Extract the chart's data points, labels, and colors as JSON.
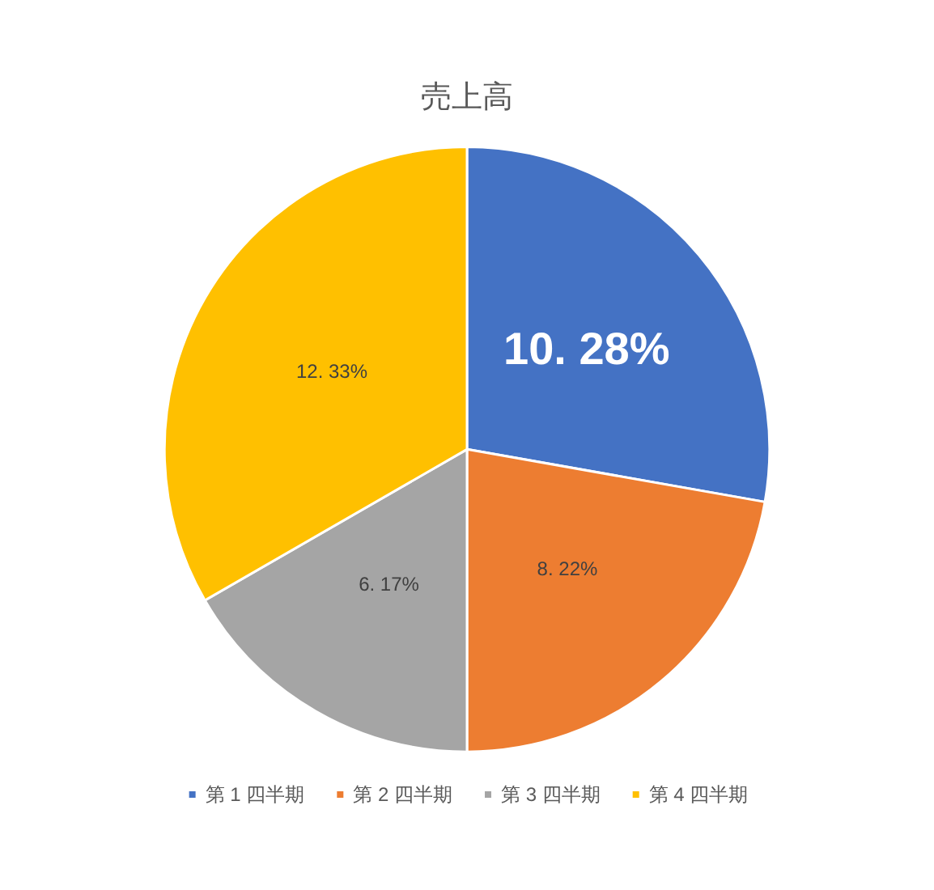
{
  "chart_data": {
    "type": "pie",
    "title": "売上高",
    "categories": [
      "第 1 四半期",
      "第 2 四半期",
      "第 3 四半期",
      "第 4 四半期"
    ],
    "values": [
      10.28,
      8.22,
      6.17,
      12.33
    ],
    "colors": [
      "#4472c4",
      "#ed7d31",
      "#a5a5a5",
      "#ffc000"
    ],
    "value_labels": [
      "10. 28%",
      "8. 22%",
      "6. 17%",
      "12. 33%"
    ],
    "legend": "bottom"
  }
}
